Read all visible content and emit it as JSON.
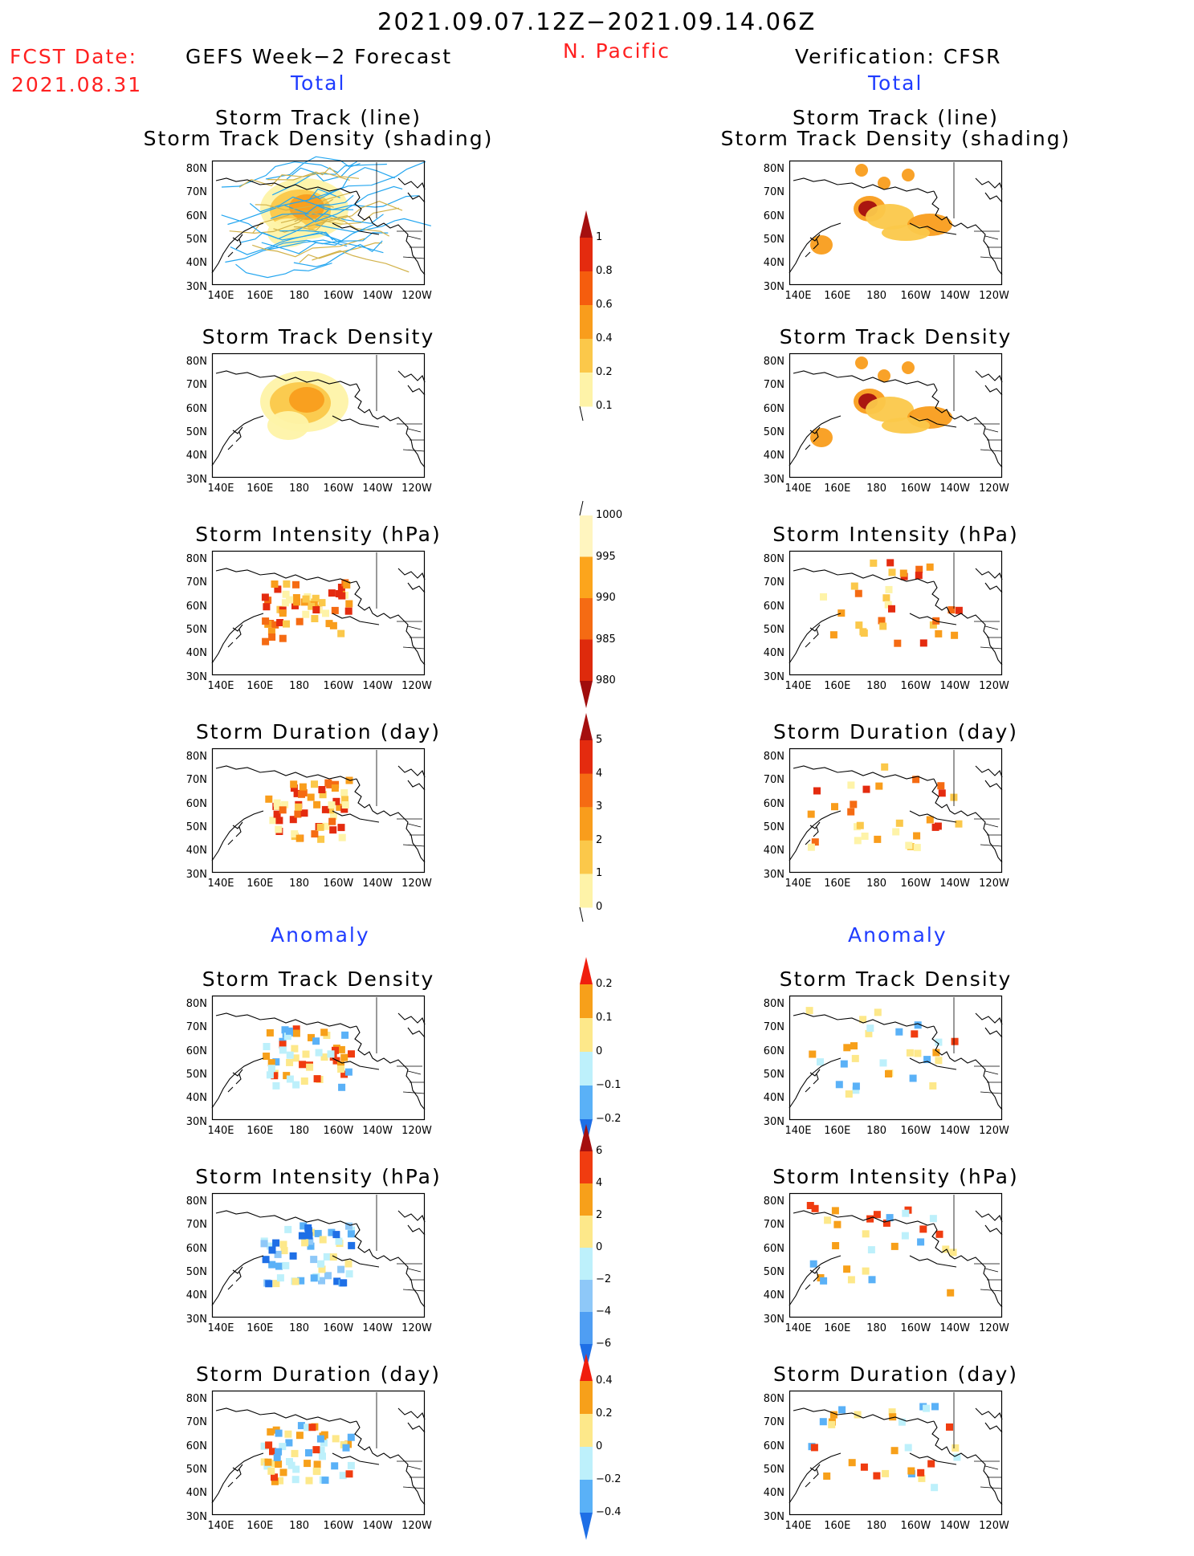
{
  "header": {
    "period": "2021.09.07.12Z−2021.09.14.06Z",
    "fcst_date_label": "FCST Date:",
    "fcst_date": "2021.08.31",
    "region": "N. Pacific",
    "left_title": "GEFS Week−2 Forecast",
    "right_title": "Verification: CFSR",
    "total_label": "Total",
    "anomaly_label": "Anomaly"
  },
  "titles": {
    "track_line": "Storm Track (line)",
    "track_shading": "Storm Track Density (shading)",
    "density": "Storm Track Density",
    "intensity": "Storm Intensity (hPa)",
    "duration": "Storm Duration (day)"
  },
  "axes": {
    "lat": [
      "80N",
      "70N",
      "60N",
      "50N",
      "40N",
      "30N"
    ],
    "lon": [
      "140E",
      "160E",
      "180",
      "160W",
      "140W",
      "120W"
    ]
  },
  "colorbars": [
    {
      "labels": [
        "1",
        "0.8",
        "0.6",
        "0.4",
        "0.2",
        "0.1"
      ],
      "colors": [
        "#a50f0f",
        "#e42b0f",
        "#f55d0e",
        "#f99d1c",
        "#fbc84a",
        "#fef3a8"
      ],
      "tri": "top"
    },
    {
      "labels": [
        "1000",
        "995",
        "990",
        "985",
        "980"
      ],
      "colors": [
        "#fff5bf",
        "#fca51c",
        "#f56b13",
        "#de2a0c",
        "#a00d0d"
      ],
      "tri": "bottom"
    },
    {
      "labels": [
        "5",
        "4",
        "3",
        "2",
        "1",
        "0"
      ],
      "colors": [
        "#a50f0f",
        "#e42b0f",
        "#f56b13",
        "#f99d1c",
        "#fbc84a",
        "#fef3a8"
      ],
      "tri": "top"
    },
    {
      "labels": [
        "0.2",
        "0.1",
        "0",
        "−0.1",
        "−0.2"
      ],
      "colors": [
        "#f01e0e",
        "#f7a01a",
        "#fde88a",
        "#bdf0fb",
        "#5ab1f7",
        "#1e6fe6"
      ],
      "tri": "both"
    },
    {
      "labels": [
        "6",
        "4",
        "2",
        "0",
        "−2",
        "−4",
        "−6"
      ],
      "colors": [
        "#a50f0f",
        "#f03c10",
        "#f7a01a",
        "#fde88a",
        "#bdf0fb",
        "#8ec8f8",
        "#4f9ef3",
        "#1e6fe6"
      ],
      "tri": "both"
    },
    {
      "labels": [
        "0.4",
        "0.2",
        "0",
        "−0.2",
        "−0.4"
      ],
      "colors": [
        "#f01e0e",
        "#f7a01a",
        "#fde88a",
        "#bdf0fb",
        "#5ab1f7",
        "#1e6fe6"
      ],
      "tri": "both"
    }
  ]
}
